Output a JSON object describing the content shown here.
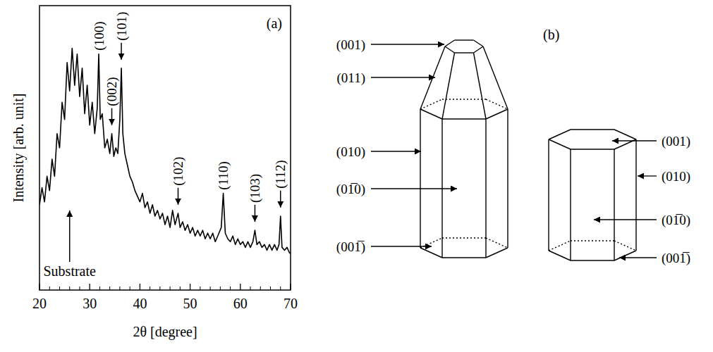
{
  "chart_data": {
    "type": "line",
    "panel": "(a)",
    "x_label": "2θ [degree]",
    "y_label": "Intensity [arb. unit]",
    "x": [
      20,
      20.5,
      21,
      21.5,
      22,
      22.5,
      23,
      23.5,
      24,
      24.5,
      25,
      25.5,
      26,
      26.5,
      27,
      27.5,
      28,
      28.5,
      29,
      29.5,
      30,
      30.5,
      31,
      31.5,
      31.8,
      32.1,
      32.5,
      33,
      33.5,
      34,
      34.4,
      34.8,
      35.2,
      35.6,
      36,
      36.3,
      36.6,
      37,
      37.5,
      38,
      38.5,
      39,
      39.5,
      40,
      40.5,
      41,
      41.5,
      42,
      42.5,
      43,
      43.5,
      44,
      44.5,
      45,
      45.5,
      46,
      46.5,
      47,
      47.6,
      48,
      48.5,
      49,
      49.5,
      50,
      50.5,
      51,
      51.5,
      52,
      52.5,
      53,
      53.5,
      54,
      54.5,
      55,
      55.5,
      56.2,
      56.6,
      57,
      57.5,
      58,
      58.5,
      59,
      59.5,
      60,
      60.5,
      61,
      61.5,
      62,
      62.5,
      62.9,
      63.3,
      63.8,
      64.3,
      64.8,
      65.3,
      65.8,
      66.3,
      66.8,
      67.3,
      67.7,
      68,
      68.3,
      68.8,
      69.3,
      69.8,
      70
    ],
    "values": [
      30,
      36,
      31,
      40,
      35,
      46,
      40,
      55,
      50,
      66,
      60,
      80,
      70,
      85,
      72,
      83,
      68,
      78,
      62,
      72,
      58,
      66,
      55,
      64,
      83,
      60,
      62,
      50,
      53,
      48,
      55,
      47,
      50,
      48,
      60,
      78,
      55,
      48,
      44,
      40,
      38,
      35,
      33,
      31,
      34,
      29,
      31,
      27,
      30,
      26,
      28,
      25,
      27,
      23,
      26,
      22,
      28,
      23,
      27,
      22,
      24,
      21,
      23,
      20,
      22,
      19,
      21,
      19,
      21,
      18,
      20,
      18,
      20,
      17,
      19,
      22,
      34,
      20,
      18,
      17,
      19,
      16,
      18,
      16,
      17,
      15,
      17,
      15,
      17,
      21,
      16,
      17,
      15,
      16,
      14,
      16,
      14,
      16,
      14,
      16,
      26,
      15,
      14,
      15,
      13,
      13
    ],
    "color": "#000000",
    "xlim": [
      20,
      70
    ],
    "xticks": [
      20,
      30,
      40,
      50,
      60,
      70
    ],
    "xminorticks": [
      22,
      24,
      26,
      28,
      32,
      34,
      36,
      38,
      42,
      44,
      46,
      48,
      52,
      54,
      56,
      58,
      62,
      64,
      66,
      68
    ],
    "ylim": [
      0,
      100
    ],
    "tick_labels": "x",
    "annotations": [
      {
        "text": "(100)",
        "x": 31.8
      },
      {
        "text": "(002)",
        "x": 34.4,
        "y": 58
      },
      {
        "text": "(101)",
        "x": 36.3,
        "y": 81
      },
      {
        "text": "(102)",
        "x": 47.6,
        "y": 30
      },
      {
        "text": "(110)",
        "x": 56.6
      },
      {
        "text": "(103)",
        "x": 62.9,
        "y": 24
      },
      {
        "text": "(112)",
        "x": 68,
        "y": 29
      }
    ],
    "substrate": {
      "text": "Substrate",
      "x": 26,
      "y": 28
    }
  },
  "diagram": {
    "label": "(b)",
    "crystals": [
      {
        "faces": [
          "(001)",
          "(011)",
          "(010)",
          "(01̅0)",
          "(001̅)"
        ]
      },
      {
        "faces": [
          "(001)",
          "(010)",
          "(01̅0)",
          "(001̅)"
        ]
      }
    ]
  }
}
